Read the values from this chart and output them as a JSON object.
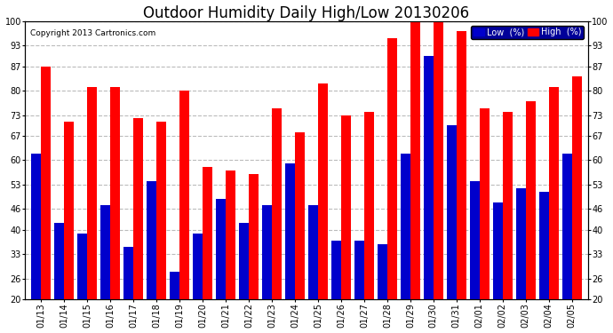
{
  "title": "Outdoor Humidity Daily High/Low 20130206",
  "copyright": "Copyright 2013 Cartronics.com",
  "categories": [
    "01/13",
    "01/14",
    "01/15",
    "01/16",
    "01/17",
    "01/18",
    "01/19",
    "01/20",
    "01/21",
    "01/22",
    "01/23",
    "01/24",
    "01/25",
    "01/26",
    "01/27",
    "01/28",
    "01/29",
    "01/30",
    "01/31",
    "02/01",
    "02/02",
    "02/03",
    "02/04",
    "02/05"
  ],
  "high_values": [
    87,
    71,
    81,
    81,
    72,
    71,
    80,
    58,
    57,
    56,
    75,
    68,
    82,
    73,
    74,
    95,
    101,
    101,
    97,
    75,
    74,
    77,
    81,
    84
  ],
  "low_values": [
    62,
    42,
    39,
    47,
    35,
    54,
    28,
    39,
    49,
    42,
    47,
    59,
    47,
    37,
    37,
    36,
    62,
    90,
    70,
    54,
    48,
    52,
    51,
    62
  ],
  "high_color": "#ff0000",
  "low_color": "#0000cc",
  "background_color": "#ffffff",
  "plot_background": "#ffffff",
  "grid_color": "#bbbbbb",
  "ylim": [
    20,
    100
  ],
  "yticks": [
    20,
    26,
    33,
    40,
    46,
    53,
    60,
    67,
    73,
    80,
    87,
    93,
    100
  ],
  "bar_width": 0.42,
  "title_fontsize": 12,
  "tick_fontsize": 7,
  "legend_bg_color": "#000099",
  "legend_low_color": "#0000cc",
  "legend_high_color": "#ff0000"
}
